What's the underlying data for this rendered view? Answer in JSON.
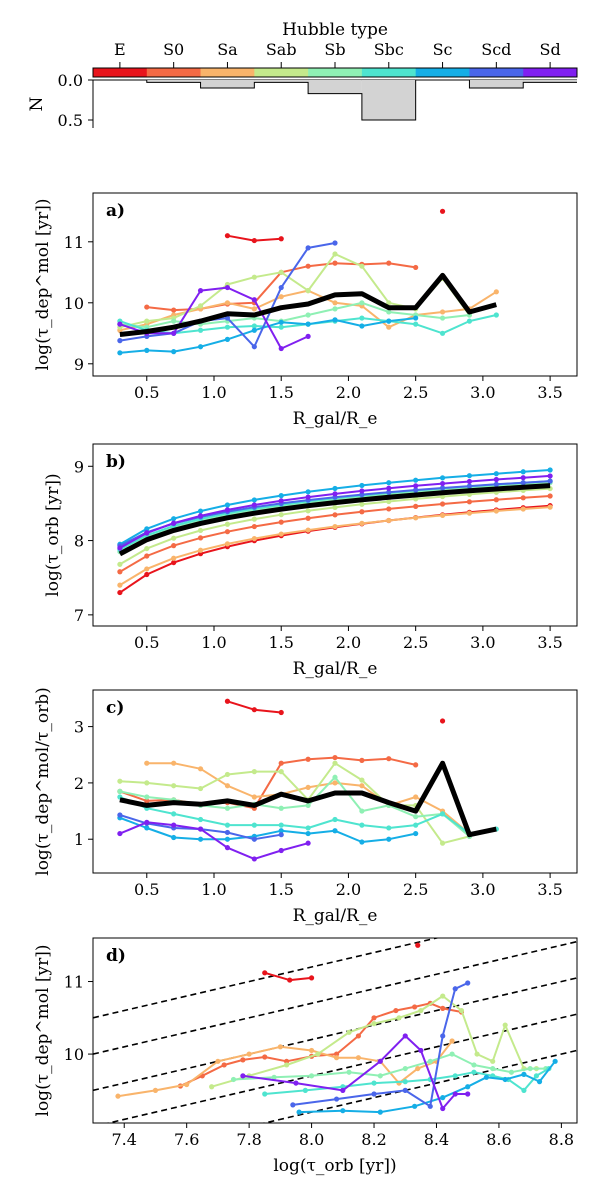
{
  "hubble_colorbar": {
    "title": "Hubble type",
    "types": [
      "E",
      "S0",
      "Sa",
      "Sab",
      "Sb",
      "Sbc",
      "Sc",
      "Scd",
      "Sd"
    ],
    "colors": [
      "#e8141c",
      "#f46a45",
      "#f9b46b",
      "#c4ea8c",
      "#8ff0b4",
      "#4ee4cf",
      "#15aee6",
      "#4a66ea",
      "#8020f0"
    ],
    "n_label": "N",
    "n_ticks": [
      "0.0",
      "0.5"
    ],
    "n_ticks_values": [
      0,
      0.5
    ],
    "n_fraction": [
      0.0,
      0.03,
      0.1,
      0.03,
      0.17,
      0.5,
      0.0,
      0.1,
      0.03
    ]
  },
  "chart_data": [
    {
      "panel": "a)",
      "type": "line",
      "xlabel": "R_gal/R_e",
      "ylabel": "log(τ_dep^mol [yr])",
      "xlim": [
        0.1,
        3.7
      ],
      "ylim": [
        8.8,
        11.8
      ],
      "xticks": [
        "0.5",
        "1.0",
        "1.5",
        "2.0",
        "2.5",
        "3.0",
        "3.5"
      ],
      "yticks": [
        "9",
        "10",
        "11"
      ],
      "xtick_values": [
        0.5,
        1.0,
        1.5,
        2.0,
        2.5,
        3.0,
        3.5
      ],
      "ytick_values": [
        9,
        10,
        11
      ],
      "series": [
        {
          "name": "E",
          "x": [
            1.1,
            1.3,
            1.5
          ],
          "y": [
            11.1,
            11.02,
            11.05
          ]
        },
        {
          "name": "E-single",
          "x": [
            2.7
          ],
          "y": [
            11.5
          ]
        },
        {
          "name": "S0",
          "x": [
            0.5,
            0.7,
            0.9,
            1.1,
            1.3,
            1.5,
            1.7,
            1.9,
            2.1,
            2.3,
            2.5
          ],
          "y": [
            9.93,
            9.88,
            9.9,
            9.98,
            10.0,
            10.5,
            10.6,
            10.65,
            10.63,
            10.65,
            10.58
          ]
        },
        {
          "name": "Sa",
          "x": [
            0.3,
            0.5,
            0.7,
            0.9,
            1.1,
            1.3,
            1.5,
            1.7,
            1.9,
            2.1,
            2.3,
            2.5,
            2.7,
            2.9,
            3.1
          ],
          "y": [
            9.55,
            9.65,
            9.8,
            9.9,
            10.0,
            9.9,
            10.1,
            10.2,
            10.0,
            9.95,
            9.6,
            9.8,
            9.85,
            9.9,
            10.18
          ]
        },
        {
          "name": "Sab",
          "x": [
            0.3,
            0.5,
            0.7,
            0.9,
            1.1,
            1.3,
            1.5,
            1.7,
            1.9,
            2.1,
            2.3,
            2.5,
            2.7,
            2.9
          ],
          "y": [
            9.6,
            9.7,
            9.75,
            9.95,
            10.3,
            10.42,
            10.5,
            10.2,
            10.8,
            10.6,
            10.0,
            9.9,
            10.4,
            9.8
          ]
        },
        {
          "name": "Sb",
          "x": [
            0.3,
            0.5,
            0.7,
            0.9,
            1.1,
            1.3,
            1.5,
            1.7,
            1.9,
            2.1,
            2.3,
            2.5,
            2.7,
            2.9
          ],
          "y": [
            9.65,
            9.6,
            9.7,
            9.65,
            9.7,
            9.75,
            9.7,
            9.8,
            9.9,
            10.0,
            9.85,
            9.8,
            9.75,
            9.8
          ]
        },
        {
          "name": "Sbc",
          "x": [
            0.3,
            0.5,
            0.7,
            0.9,
            1.1,
            1.3,
            1.5,
            1.7,
            1.9,
            2.1,
            2.3,
            2.5,
            2.7,
            2.9,
            3.1
          ],
          "y": [
            9.7,
            9.55,
            9.5,
            9.55,
            9.6,
            9.62,
            9.6,
            9.65,
            9.7,
            9.75,
            9.7,
            9.65,
            9.5,
            9.7,
            9.8
          ]
        },
        {
          "name": "Sc",
          "x": [
            0.3,
            0.5,
            0.7,
            0.9,
            1.1,
            1.3,
            1.5,
            1.7,
            1.9,
            2.1,
            2.3,
            2.5
          ],
          "y": [
            9.18,
            9.22,
            9.2,
            9.28,
            9.4,
            9.55,
            9.68,
            9.65,
            9.72,
            9.62,
            9.7,
            9.75
          ]
        },
        {
          "name": "Scd",
          "x": [
            0.3,
            0.5,
            0.7,
            0.9,
            1.1,
            1.3,
            1.5,
            1.7,
            1.9
          ],
          "y": [
            9.38,
            9.45,
            9.5,
            9.7,
            9.75,
            9.28,
            10.25,
            10.9,
            10.98
          ]
        },
        {
          "name": "Sd",
          "x": [
            0.3,
            0.5,
            0.7,
            0.9,
            1.1,
            1.3,
            1.5,
            1.7
          ],
          "y": [
            9.65,
            9.5,
            9.5,
            10.2,
            10.25,
            10.05,
            9.25,
            9.45
          ]
        },
        {
          "name": "Median",
          "x": [
            0.3,
            0.5,
            0.7,
            0.9,
            1.1,
            1.3,
            1.5,
            1.7,
            1.9,
            2.1,
            2.3,
            2.5,
            2.7,
            2.9,
            3.1
          ],
          "y": [
            9.48,
            9.53,
            9.6,
            9.7,
            9.82,
            9.8,
            9.92,
            9.98,
            10.13,
            10.15,
            9.92,
            9.92,
            10.45,
            9.85,
            9.97
          ]
        }
      ]
    },
    {
      "panel": "b)",
      "type": "line",
      "xlabel": "R_gal/R_e",
      "ylabel": "log(τ_orb [yr])",
      "xlim": [
        0.1,
        3.7
      ],
      "ylim": [
        6.85,
        9.3
      ],
      "xticks": [
        "0.5",
        "1.0",
        "1.5",
        "2.0",
        "2.5",
        "3.0",
        "3.5"
      ],
      "yticks": [
        "7",
        "8",
        "9"
      ],
      "xtick_values": [
        0.5,
        1.0,
        1.5,
        2.0,
        2.5,
        3.0,
        3.5
      ],
      "ytick_values": [
        7,
        8,
        9
      ],
      "series": [
        {
          "name": "E",
          "start": 7.3,
          "end": 8.47
        },
        {
          "name": "S0",
          "start": 7.58,
          "end": 8.6
        },
        {
          "name": "Sa",
          "start": 7.4,
          "end": 8.45
        },
        {
          "name": "Sab",
          "start": 7.68,
          "end": 8.7
        },
        {
          "name": "Sb",
          "start": 7.85,
          "end": 8.78
        },
        {
          "name": "Sbc",
          "start": 7.88,
          "end": 8.8
        },
        {
          "name": "Sc",
          "start": 7.95,
          "end": 8.95
        },
        {
          "name": "Scd",
          "start": 7.93,
          "end": 8.8
        },
        {
          "name": "Sd",
          "start": 7.9,
          "end": 8.87
        },
        {
          "name": "Median",
          "start": 7.82,
          "end": 8.74
        }
      ]
    },
    {
      "panel": "c)",
      "type": "line",
      "xlabel": "R_gal/R_e",
      "ylabel": "log(τ_dep^mol/τ_orb)",
      "xlim": [
        0.1,
        3.7
      ],
      "ylim": [
        0.4,
        3.65
      ],
      "xticks": [
        "0.5",
        "1.0",
        "1.5",
        "2.0",
        "2.5",
        "3.0",
        "3.5"
      ],
      "yticks": [
        "1",
        "2",
        "3"
      ],
      "xtick_values": [
        0.5,
        1.0,
        1.5,
        2.0,
        2.5,
        3.0,
        3.5
      ],
      "ytick_values": [
        1,
        2,
        3
      ],
      "series": [
        {
          "name": "E",
          "x": [
            1.1,
            1.3,
            1.5
          ],
          "y": [
            3.45,
            3.3,
            3.25
          ]
        },
        {
          "name": "E-single",
          "x": [
            2.7
          ],
          "y": [
            3.1
          ]
        },
        {
          "name": "S0",
          "x": [
            0.3,
            0.5,
            0.7,
            0.9,
            1.1,
            1.3,
            1.5,
            1.7,
            1.9,
            2.1,
            2.3,
            2.5
          ],
          "y": [
            1.85,
            1.68,
            1.7,
            1.62,
            1.65,
            1.55,
            2.35,
            2.42,
            2.45,
            2.4,
            2.43,
            2.32
          ]
        },
        {
          "name": "Sa",
          "x": [
            0.5,
            0.7,
            0.9,
            1.1,
            1.3,
            1.5,
            1.7,
            1.9,
            2.1,
            2.3,
            2.5,
            2.7,
            2.9
          ],
          "y": [
            2.35,
            2.35,
            2.25,
            1.95,
            1.75,
            1.8,
            1.92,
            2.0,
            1.95,
            1.6,
            1.75,
            1.5,
            1.1
          ]
        },
        {
          "name": "Sab",
          "x": [
            0.3,
            0.5,
            0.7,
            0.9,
            1.1,
            1.3,
            1.5,
            1.7,
            1.9,
            2.1,
            2.3,
            2.5,
            2.7,
            2.9
          ],
          "y": [
            2.03,
            2.0,
            1.95,
            1.9,
            2.15,
            2.2,
            2.2,
            1.7,
            2.35,
            2.05,
            1.6,
            1.6,
            0.93,
            1.05
          ]
        },
        {
          "name": "Sb",
          "x": [
            0.3,
            0.5,
            0.7,
            0.9,
            1.1,
            1.3,
            1.5,
            1.7,
            1.9,
            2.1,
            2.3,
            2.5,
            2.7,
            2.9
          ],
          "y": [
            1.85,
            1.75,
            1.7,
            1.6,
            1.55,
            1.62,
            1.55,
            1.6,
            2.1,
            1.5,
            1.6,
            1.4,
            1.45,
            1.05
          ]
        },
        {
          "name": "Sbc",
          "x": [
            0.3,
            0.5,
            0.7,
            0.9,
            1.1,
            1.3,
            1.5,
            1.7,
            1.9,
            2.1,
            2.3,
            2.5,
            2.7,
            2.9,
            3.1
          ],
          "y": [
            1.75,
            1.55,
            1.45,
            1.35,
            1.25,
            1.25,
            1.25,
            1.2,
            1.35,
            1.25,
            1.2,
            1.25,
            1.45,
            1.1,
            1.18
          ]
        },
        {
          "name": "Sc",
          "x": [
            0.3,
            0.5,
            0.7,
            0.9,
            1.1,
            1.3,
            1.5,
            1.7,
            1.9,
            2.1,
            2.3,
            2.5
          ],
          "y": [
            1.38,
            1.2,
            1.03,
            1.0,
            1.0,
            1.05,
            1.15,
            1.1,
            1.15,
            0.95,
            1.0,
            1.1
          ]
        },
        {
          "name": "Scd",
          "x": [
            0.3,
            0.5,
            0.7,
            0.9,
            1.1,
            1.3,
            1.5
          ],
          "y": [
            1.43,
            1.28,
            1.2,
            1.18,
            1.12,
            1.0,
            1.08
          ]
        },
        {
          "name": "Sd",
          "x": [
            0.3,
            0.5,
            0.7,
            0.9,
            1.1,
            1.3,
            1.5,
            1.7
          ],
          "y": [
            1.1,
            1.3,
            1.25,
            1.18,
            0.85,
            0.65,
            0.8,
            0.93
          ]
        },
        {
          "name": "Median",
          "x": [
            0.3,
            0.5,
            0.7,
            0.9,
            1.1,
            1.3,
            1.5,
            1.7,
            1.9,
            2.1,
            2.3,
            2.5,
            2.7,
            2.9,
            3.1
          ],
          "y": [
            1.7,
            1.6,
            1.65,
            1.62,
            1.68,
            1.6,
            1.8,
            1.68,
            1.82,
            1.82,
            1.65,
            1.5,
            2.35,
            1.08,
            1.18
          ]
        }
      ]
    },
    {
      "panel": "d)",
      "type": "line",
      "xlabel": "log(τ_orb [yr])",
      "ylabel": "log(τ_dep^mol [yr])",
      "xlim": [
        7.3,
        8.85
      ],
      "ylim": [
        9.05,
        11.6
      ],
      "xticks": [
        "7.4",
        "7.6",
        "7.8",
        "8.0",
        "8.2",
        "8.4",
        "8.6",
        "8.8"
      ],
      "yticks": [
        "10",
        "11"
      ],
      "xtick_values": [
        7.4,
        7.6,
        7.8,
        8.0,
        8.2,
        8.4,
        8.6,
        8.8
      ],
      "ytick_values": [
        10,
        11
      ],
      "dashed_lines_intercepts": [
        1.2,
        1.7,
        2.2,
        2.7,
        3.2
      ],
      "series": [
        {
          "name": "E",
          "x": [
            7.85,
            7.93,
            8.0
          ],
          "y": [
            11.12,
            11.02,
            11.05
          ]
        },
        {
          "name": "E-single",
          "x": [
            8.34
          ],
          "y": [
            11.5
          ]
        },
        {
          "name": "S0",
          "x": [
            7.58,
            7.65,
            7.72,
            7.78,
            7.85,
            7.92,
            8.0,
            8.08,
            8.15,
            8.2,
            8.27,
            8.33,
            8.38,
            8.42,
            8.48
          ],
          "y": [
            9.56,
            9.7,
            9.85,
            9.92,
            9.96,
            9.9,
            9.97,
            10.0,
            10.25,
            10.5,
            10.6,
            10.65,
            10.7,
            10.63,
            10.58
          ]
        },
        {
          "name": "Sa",
          "x": [
            7.38,
            7.5,
            7.6,
            7.7,
            7.8,
            7.9,
            8.0,
            8.08,
            8.15,
            8.22,
            8.28,
            8.34,
            8.4,
            8.45
          ],
          "y": [
            9.42,
            9.5,
            9.58,
            9.9,
            10.0,
            10.1,
            10.05,
            9.95,
            9.95,
            9.9,
            9.6,
            9.8,
            9.9,
            10.18
          ]
        },
        {
          "name": "Sab",
          "x": [
            7.68,
            7.8,
            7.92,
            8.02,
            8.12,
            8.2,
            8.28,
            8.35,
            8.42,
            8.48,
            8.53,
            8.58,
            8.62,
            8.68,
            8.72
          ],
          "y": [
            9.55,
            9.7,
            9.85,
            10.0,
            10.3,
            10.42,
            10.5,
            10.6,
            10.8,
            10.6,
            10.0,
            9.9,
            10.4,
            9.8,
            9.8
          ]
        },
        {
          "name": "Sb",
          "x": [
            7.75,
            7.88,
            8.0,
            8.12,
            8.22,
            8.3,
            8.38,
            8.45,
            8.52,
            8.58,
            8.64,
            8.7,
            8.75
          ],
          "y": [
            9.65,
            9.68,
            9.7,
            9.75,
            9.7,
            9.8,
            9.9,
            10.0,
            9.85,
            9.8,
            9.75,
            9.8,
            9.8
          ]
        },
        {
          "name": "Sbc",
          "x": [
            7.85,
            7.98,
            8.1,
            8.2,
            8.3,
            8.38,
            8.46,
            8.52,
            8.58,
            8.63,
            8.68,
            8.72,
            8.76
          ],
          "y": [
            9.45,
            9.5,
            9.55,
            9.6,
            9.62,
            9.65,
            9.7,
            9.75,
            9.7,
            9.65,
            9.5,
            9.7,
            9.8
          ]
        },
        {
          "name": "Sc",
          "x": [
            7.96,
            8.1,
            8.22,
            8.33,
            8.42,
            8.5,
            8.56,
            8.62,
            8.68,
            8.73,
            8.78
          ],
          "y": [
            9.2,
            9.22,
            9.2,
            9.28,
            9.4,
            9.55,
            9.68,
            9.65,
            9.72,
            9.62,
            9.9
          ]
        },
        {
          "name": "Scd",
          "x": [
            7.94,
            8.08,
            8.2,
            8.3,
            8.38,
            8.42,
            8.46,
            8.5
          ],
          "y": [
            9.3,
            9.38,
            9.45,
            9.5,
            9.28,
            10.25,
            10.9,
            10.98
          ]
        },
        {
          "name": "Sd",
          "x": [
            7.78,
            7.95,
            8.1,
            8.22,
            8.3,
            8.35,
            8.42,
            8.46,
            8.5
          ],
          "y": [
            9.7,
            9.6,
            9.5,
            9.9,
            10.25,
            10.05,
            9.25,
            9.45,
            9.45
          ]
        }
      ]
    }
  ]
}
